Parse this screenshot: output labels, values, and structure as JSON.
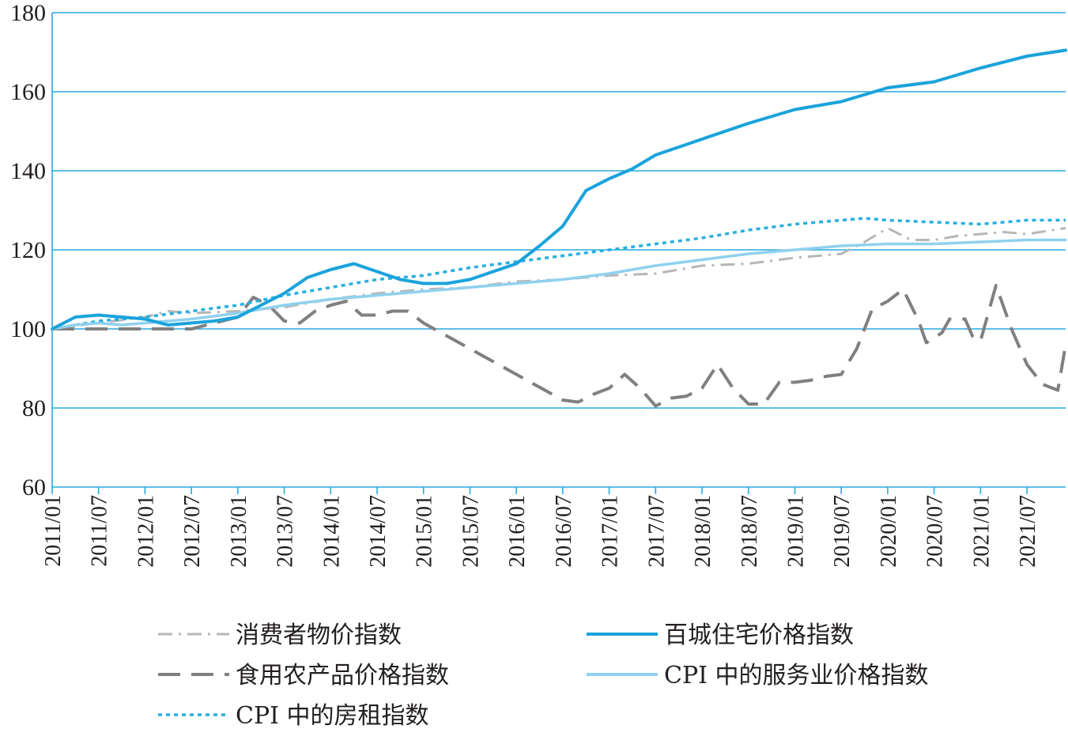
{
  "chart_data": {
    "type": "line",
    "title": "",
    "xlabel": "",
    "ylabel": "",
    "ylim": [
      60,
      180
    ],
    "yticks": [
      60,
      80,
      100,
      120,
      140,
      160,
      180
    ],
    "x_tick_labels": [
      "2011/01",
      "2011/07",
      "2012/01",
      "2012/07",
      "2013/01",
      "2013/07",
      "2014/01",
      "2014/07",
      "2015/01",
      "2015/07",
      "2016/01",
      "2016/07",
      "2017/01",
      "2017/07",
      "2018/01",
      "2018/07",
      "2019/01",
      "2019/07",
      "2020/01",
      "2020/07",
      "2021/01",
      "2021/07"
    ],
    "x_range": [
      "2011/01",
      "2021/12"
    ],
    "grid": "horizontal",
    "legend_position": "bottom",
    "series": [
      {
        "name": "消费者物价指数",
        "color": "#b7b7b7",
        "style": "dash-dot",
        "points": [
          [
            "2011/01",
            100
          ],
          [
            "2011/07",
            101.5
          ],
          [
            "2012/01",
            103
          ],
          [
            "2012/04",
            104.5
          ],
          [
            "2012/07",
            104
          ],
          [
            "2013/01",
            104.5
          ],
          [
            "2013/07",
            105.5
          ],
          [
            "2014/01",
            107.5
          ],
          [
            "2014/07",
            109
          ],
          [
            "2015/01",
            110
          ],
          [
            "2015/07",
            110.5
          ],
          [
            "2016/01",
            112
          ],
          [
            "2016/07",
            112.5
          ],
          [
            "2017/01",
            113.5
          ],
          [
            "2017/07",
            114
          ],
          [
            "2018/01",
            116
          ],
          [
            "2018/07",
            116.5
          ],
          [
            "2019/01",
            118
          ],
          [
            "2019/07",
            119
          ],
          [
            "2019/10",
            122
          ],
          [
            "2020/01",
            125.5
          ],
          [
            "2020/04",
            122.5
          ],
          [
            "2020/07",
            122.5
          ],
          [
            "2020/10",
            123.5
          ],
          [
            "2021/01",
            124
          ],
          [
            "2021/04",
            124.5
          ],
          [
            "2021/07",
            124
          ],
          [
            "2021/12",
            125.5
          ]
        ]
      },
      {
        "name": "百城住宅价格指数",
        "color": "#1aa3dc",
        "style": "solid",
        "points": [
          [
            "2011/01",
            100
          ],
          [
            "2011/04",
            103
          ],
          [
            "2011/07",
            103.5
          ],
          [
            "2011/10",
            103
          ],
          [
            "2012/01",
            102.5
          ],
          [
            "2012/04",
            101
          ],
          [
            "2012/07",
            101.5
          ],
          [
            "2012/10",
            102
          ],
          [
            "2013/01",
            103
          ],
          [
            "2013/04",
            106
          ],
          [
            "2013/07",
            109
          ],
          [
            "2013/10",
            113
          ],
          [
            "2014/01",
            115
          ],
          [
            "2014/04",
            116.5
          ],
          [
            "2014/07",
            114.5
          ],
          [
            "2014/10",
            112.5
          ],
          [
            "2015/01",
            111.5
          ],
          [
            "2015/04",
            111.5
          ],
          [
            "2015/07",
            112.5
          ],
          [
            "2015/10",
            114.5
          ],
          [
            "2016/01",
            116.5
          ],
          [
            "2016/04",
            121
          ],
          [
            "2016/07",
            126
          ],
          [
            "2016/10",
            135
          ],
          [
            "2017/01",
            138
          ],
          [
            "2017/04",
            140.5
          ],
          [
            "2017/07",
            144
          ],
          [
            "2017/10",
            146
          ],
          [
            "2018/01",
            148
          ],
          [
            "2018/07",
            152
          ],
          [
            "2019/01",
            155.5
          ],
          [
            "2019/07",
            157.5
          ],
          [
            "2020/01",
            161
          ],
          [
            "2020/07",
            162.5
          ],
          [
            "2021/01",
            166
          ],
          [
            "2021/07",
            169
          ],
          [
            "2021/12",
            170.5
          ]
        ]
      },
      {
        "name": "食用农产品价格指数",
        "color": "#808080",
        "style": "dashed",
        "points": [
          [
            "2011/01",
            100
          ],
          [
            "2012/07",
            100
          ],
          [
            "2012/10",
            101.5
          ],
          [
            "2013/01",
            103
          ],
          [
            "2013/03",
            108
          ],
          [
            "2013/05",
            106
          ],
          [
            "2013/07",
            102
          ],
          [
            "2013/09",
            101.5
          ],
          [
            "2013/11",
            104.5
          ],
          [
            "2014/01",
            106
          ],
          [
            "2014/03",
            107
          ],
          [
            "2014/05",
            103.5
          ],
          [
            "2014/07",
            103.5
          ],
          [
            "2014/09",
            104.5
          ],
          [
            "2014/11",
            104.5
          ],
          [
            "2015/01",
            101.5
          ],
          [
            "2016/07",
            82
          ],
          [
            "2016/09",
            81.5
          ],
          [
            "2016/11",
            83.5
          ],
          [
            "2017/01",
            85
          ],
          [
            "2017/03",
            88.5
          ],
          [
            "2017/05",
            85
          ],
          [
            "2017/07",
            80.5
          ],
          [
            "2017/09",
            82.5
          ],
          [
            "2017/11",
            83
          ],
          [
            "2018/01",
            85
          ],
          [
            "2018/03",
            91
          ],
          [
            "2018/05",
            85
          ],
          [
            "2018/07",
            81
          ],
          [
            "2018/09",
            81
          ],
          [
            "2018/11",
            86.5
          ],
          [
            "2019/01",
            86.5
          ],
          [
            "2019/03",
            87
          ],
          [
            "2019/05",
            88
          ],
          [
            "2019/07",
            88.5
          ],
          [
            "2019/09",
            95
          ],
          [
            "2019/11",
            105
          ],
          [
            "2020/01",
            107
          ],
          [
            "2020/03",
            110
          ],
          [
            "2020/05",
            102
          ],
          [
            "2020/06",
            96.5
          ],
          [
            "2020/08",
            99
          ],
          [
            "2020/09",
            102.5
          ],
          [
            "2020/11",
            102.5
          ],
          [
            "2020/12",
            98
          ],
          [
            "2021/01",
            97
          ],
          [
            "2021/03",
            111
          ],
          [
            "2021/05",
            100
          ],
          [
            "2021/07",
            91
          ],
          [
            "2021/09",
            86
          ],
          [
            "2021/11",
            84.5
          ],
          [
            "2021/12",
            96
          ]
        ]
      },
      {
        "name": "CPI 中的服务业价格指数",
        "color": "#8fd1ef",
        "style": "solid",
        "points": [
          [
            "2011/01",
            100
          ],
          [
            "2011/04",
            101
          ],
          [
            "2011/07",
            101.5
          ],
          [
            "2011/10",
            101
          ],
          [
            "2012/01",
            101.5
          ],
          [
            "2012/07",
            102.5
          ],
          [
            "2013/01",
            104
          ],
          [
            "2013/07",
            106
          ],
          [
            "2014/01",
            107.5
          ],
          [
            "2014/07",
            108.5
          ],
          [
            "2015/01",
            109.5
          ],
          [
            "2015/07",
            110.5
          ],
          [
            "2016/01",
            111.5
          ],
          [
            "2016/07",
            112.5
          ],
          [
            "2017/01",
            114
          ],
          [
            "2017/07",
            116
          ],
          [
            "2018/01",
            117.5
          ],
          [
            "2018/07",
            119
          ],
          [
            "2019/01",
            120
          ],
          [
            "2019/07",
            121
          ],
          [
            "2020/01",
            121.5
          ],
          [
            "2020/07",
            121.5
          ],
          [
            "2021/01",
            122
          ],
          [
            "2021/07",
            122.5
          ],
          [
            "2021/12",
            122.5
          ]
        ]
      },
      {
        "name": "CPI 中的房租指数",
        "color": "#26b0df",
        "style": "dotted",
        "points": [
          [
            "2011/01",
            100
          ],
          [
            "2011/07",
            102
          ],
          [
            "2012/01",
            103
          ],
          [
            "2012/07",
            104.5
          ],
          [
            "2013/01",
            106
          ],
          [
            "2013/07",
            108.5
          ],
          [
            "2014/01",
            110.5
          ],
          [
            "2014/07",
            112.5
          ],
          [
            "2015/01",
            113.5
          ],
          [
            "2015/07",
            115.5
          ],
          [
            "2016/01",
            117
          ],
          [
            "2016/07",
            118.5
          ],
          [
            "2017/01",
            120
          ],
          [
            "2017/07",
            121.5
          ],
          [
            "2018/01",
            123
          ],
          [
            "2018/07",
            125
          ],
          [
            "2019/01",
            126.5
          ],
          [
            "2019/07",
            127.5
          ],
          [
            "2019/10",
            128
          ],
          [
            "2020/01",
            127.5
          ],
          [
            "2020/07",
            127
          ],
          [
            "2021/01",
            126.5
          ],
          [
            "2021/07",
            127.5
          ],
          [
            "2021/12",
            127.5
          ]
        ]
      }
    ]
  }
}
